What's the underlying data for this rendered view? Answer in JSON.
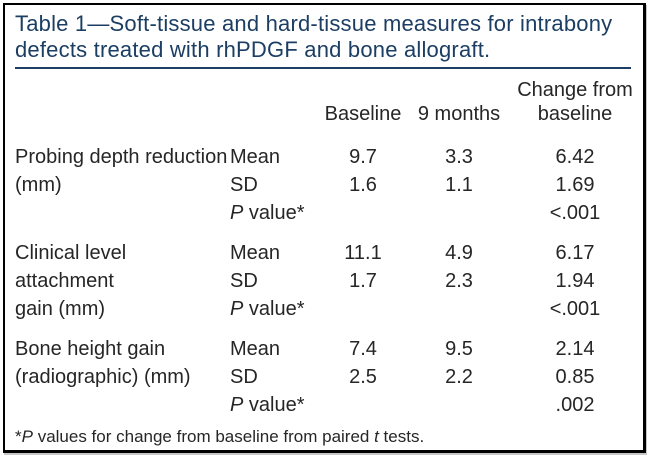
{
  "title_line1": "Table 1—Soft-tissue and hard-tissue measures for intrabony",
  "title_line2": "defects treated with rhPDGF and bone allograft.",
  "columns": {
    "baseline": "Baseline",
    "nine_months": "9 months",
    "change": "Change from baseline"
  },
  "groups": [
    {
      "label_line1": "Probing depth reduction",
      "label_line2": "(mm)",
      "rows": [
        {
          "stat_i": "",
          "stat": "Mean",
          "baseline": "9.7",
          "nine_months": "3.3",
          "change": "6.42"
        },
        {
          "stat_i": "",
          "stat": "SD",
          "baseline": "1.6",
          "nine_months": "1.1",
          "change": "1.69"
        },
        {
          "stat_i": "P",
          "stat": " value*",
          "baseline": "",
          "nine_months": "",
          "change": "<.001"
        }
      ]
    },
    {
      "label_line1": "Clinical level attachment",
      "label_line2": "gain (mm)",
      "rows": [
        {
          "stat_i": "",
          "stat": "Mean",
          "baseline": "11.1",
          "nine_months": "4.9",
          "change": "6.17"
        },
        {
          "stat_i": "",
          "stat": "SD",
          "baseline": "1.7",
          "nine_months": "2.3",
          "change": "1.94"
        },
        {
          "stat_i": "P",
          "stat": " value*",
          "baseline": "",
          "nine_months": "",
          "change": "<.001"
        }
      ]
    },
    {
      "label_line1": "Bone height gain",
      "label_line2": "(radiographic) (mm)",
      "rows": [
        {
          "stat_i": "",
          "stat": "Mean",
          "baseline": "7.4",
          "nine_months": "9.5",
          "change": "2.14"
        },
        {
          "stat_i": "",
          "stat": "SD",
          "baseline": "2.5",
          "nine_months": "2.2",
          "change": "0.85"
        },
        {
          "stat_i": "P",
          "stat": " value*",
          "baseline": "",
          "nine_months": "",
          "change": ".002"
        }
      ]
    }
  ],
  "footnote": {
    "star": "*",
    "p": "P",
    "mid": " values for change from baseline from paired ",
    "t": "t",
    "end": " tests."
  },
  "colors": {
    "title_navy": "#1c3e63",
    "border": "#000000",
    "body_text": "#262626"
  }
}
